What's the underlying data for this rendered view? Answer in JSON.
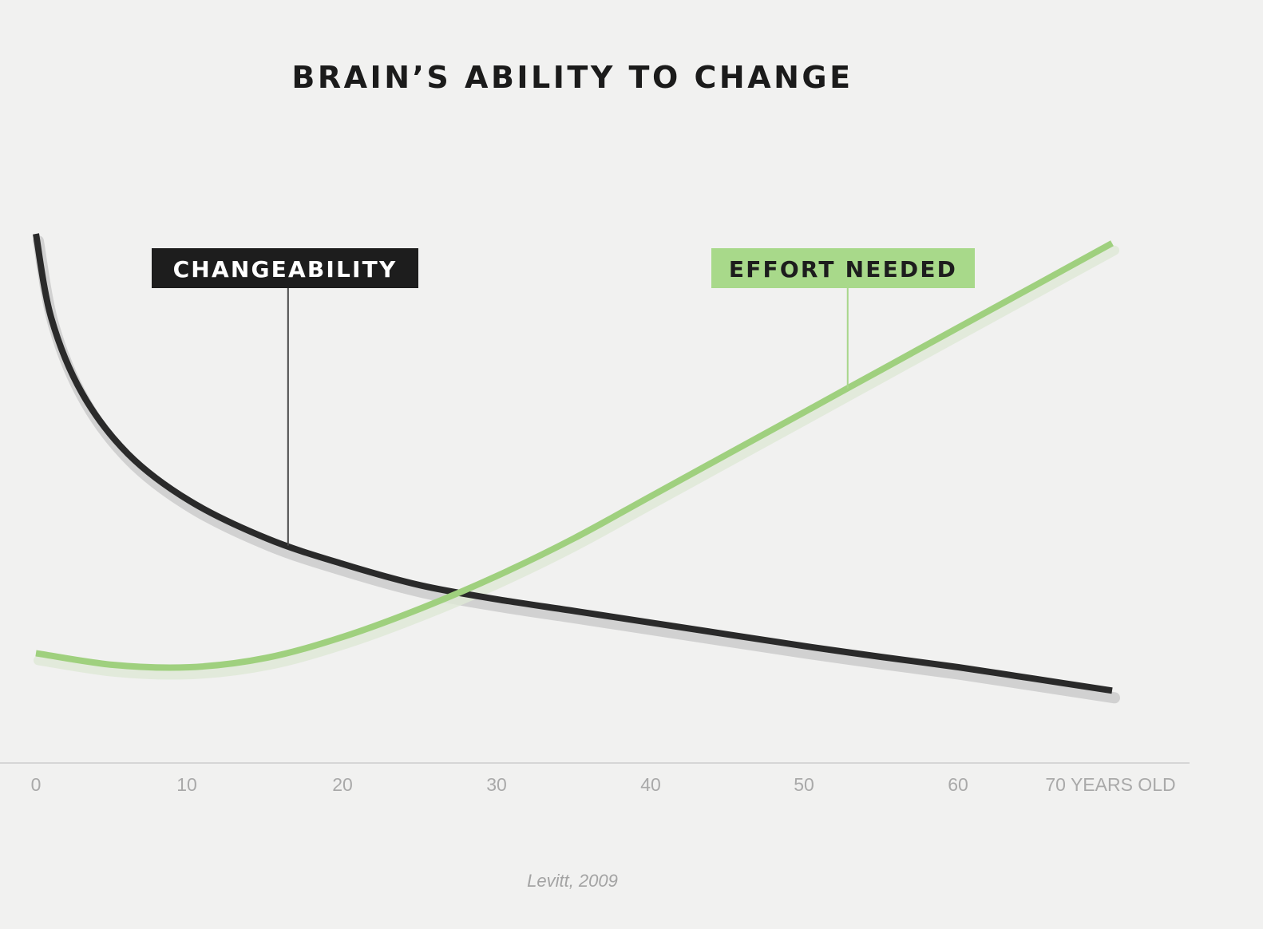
{
  "chart_data": {
    "type": "line",
    "title": "BRAIN’S ABILITY TO CHANGE",
    "x_ticks": [
      {
        "value": 0,
        "label": "0"
      },
      {
        "value": 10,
        "label": "10"
      },
      {
        "value": 20,
        "label": "20"
      },
      {
        "value": 30,
        "label": "30"
      },
      {
        "value": 40,
        "label": "40"
      },
      {
        "value": 50,
        "label": "50"
      },
      {
        "value": 60,
        "label": "60"
      },
      {
        "value": 70,
        "label": "70 YEARS OLD"
      }
    ],
    "xlim": [
      0,
      70
    ],
    "ylim": [
      0,
      100
    ],
    "y_axis_labels": "none",
    "grid": false,
    "series": [
      {
        "name": "CHANGEABILITY",
        "color": "#2a2a2a",
        "label_style": "dark-box",
        "label_anchor_x": 16.4,
        "x": [
          0,
          1,
          3,
          6,
          10,
          15,
          20,
          25,
          30,
          35,
          40,
          45,
          50,
          55,
          60,
          65,
          70
        ],
        "y": [
          100,
          82,
          66,
          53,
          43,
          35,
          29.5,
          25,
          22,
          19.5,
          17,
          14.5,
          12,
          9.7,
          7.5,
          5,
          2.5
        ]
      },
      {
        "name": "EFFORT NEEDED",
        "color": "#9fd07e",
        "label_style": "green-box",
        "label_anchor_x": 52.8,
        "x": [
          0,
          5,
          10,
          15,
          20,
          25,
          30,
          35,
          40,
          45,
          50,
          55,
          60,
          65,
          70
        ],
        "y": [
          10.5,
          8,
          7.5,
          9.5,
          14,
          20,
          27,
          35,
          44,
          53,
          62,
          71,
          80,
          89,
          98
        ]
      }
    ],
    "source": "Levitt, 2009"
  }
}
